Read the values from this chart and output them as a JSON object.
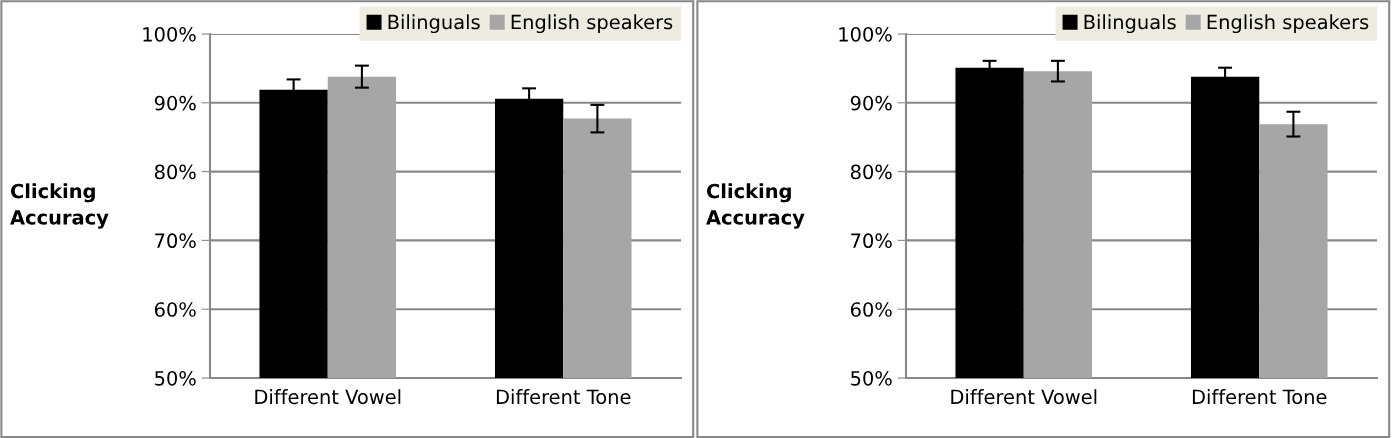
{
  "chart_data": [
    {
      "type": "bar",
      "ylabel": "Clicking\nAccuracy",
      "categories": [
        "Different Vowel",
        "Different Tone"
      ],
      "series": [
        {
          "name": "Bilinguals",
          "color": "#000000",
          "values": [
            91.9,
            90.6
          ],
          "errors": [
            1.5,
            1.5
          ]
        },
        {
          "name": "English speakers",
          "color": "#a6a6a6",
          "values": [
            93.8,
            87.7
          ],
          "errors": [
            1.6,
            2.0
          ]
        }
      ],
      "ylim": [
        50,
        100
      ],
      "yticks": [
        {
          "value": 50,
          "label": "50%"
        },
        {
          "value": 60,
          "label": "60%"
        },
        {
          "value": 70,
          "label": "70%"
        },
        {
          "value": 80,
          "label": "80%"
        },
        {
          "value": 90,
          "label": "90%"
        },
        {
          "value": 100,
          "label": "100%"
        }
      ],
      "grid": "y",
      "legend": "top right"
    },
    {
      "type": "bar",
      "ylabel": "Clicking\nAccuracy",
      "categories": [
        "Different Vowel",
        "Different Tone"
      ],
      "series": [
        {
          "name": "Bilinguals",
          "color": "#000000",
          "values": [
            95.1,
            93.8
          ],
          "errors": [
            1.0,
            1.3
          ]
        },
        {
          "name": "English speakers",
          "color": "#a6a6a6",
          "values": [
            94.6,
            86.9
          ],
          "errors": [
            1.5,
            1.8
          ]
        }
      ],
      "ylim": [
        50,
        100
      ],
      "yticks": [
        {
          "value": 50,
          "label": "50%"
        },
        {
          "value": 60,
          "label": "60%"
        },
        {
          "value": 70,
          "label": "70%"
        },
        {
          "value": 80,
          "label": "80%"
        },
        {
          "value": 90,
          "label": "90%"
        },
        {
          "value": 100,
          "label": "100%"
        }
      ],
      "grid": "y",
      "legend": "top right"
    }
  ]
}
